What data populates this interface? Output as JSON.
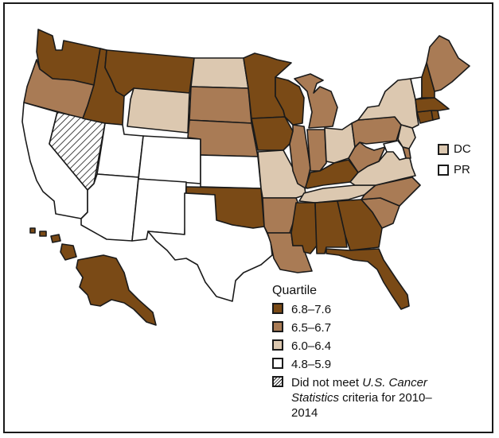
{
  "legend": {
    "title": "Quartile",
    "items": [
      {
        "label": "6.8–7.6",
        "color": "#7a4a16"
      },
      {
        "label": "6.5–6.7",
        "color": "#a97b55"
      },
      {
        "label": "6.0–6.4",
        "color": "#dcc8b0"
      },
      {
        "label": "4.8–5.9",
        "color": "#ffffff"
      }
    ],
    "nodata_prefix": "Did not meet ",
    "nodata_italic": "U.S. Cancer Statistics",
    "nodata_suffix": " criteria for 2010–2014"
  },
  "insets": {
    "dc": {
      "label": "DC",
      "quartile": "6.0–6.4"
    },
    "pr": {
      "label": "PR",
      "quartile": "4.8–5.9"
    }
  },
  "states": {
    "WA": "6.8–7.6",
    "OR": "6.5–6.7",
    "CA": "4.8–5.9",
    "NV": "no-data",
    "ID": "6.8–7.6",
    "MT": "6.8–7.6",
    "WY": "6.0–6.4",
    "UT": "4.8–5.9",
    "AZ": "4.8–5.9",
    "CO": "4.8–5.9",
    "NM": "4.8–5.9",
    "ND": "6.0–6.4",
    "SD": "6.5–6.7",
    "NE": "6.5–6.7",
    "KS": "4.8–5.9",
    "OK": "6.8–7.6",
    "TX": "4.8–5.9",
    "MN": "6.8–7.6",
    "IA": "6.8–7.6",
    "MO": "6.0–6.4",
    "AR": "6.5–6.7",
    "LA": "6.5–6.7",
    "WI": "6.8–7.6",
    "IL": "6.5–6.7",
    "MI": "6.5–6.7",
    "IN": "6.5–6.7",
    "OH": "6.0–6.4",
    "KY": "6.8–7.6",
    "TN": "6.0–6.4",
    "MS": "6.8–7.6",
    "AL": "6.8–7.6",
    "GA": "6.8–7.6",
    "FL": "6.8–7.6",
    "SC": "6.5–6.7",
    "NC": "6.5–6.7",
    "VA": "6.0–6.4",
    "WV": "6.5–6.7",
    "PA": "6.5–6.7",
    "NY": "6.0–6.4",
    "NJ": "6.0–6.4",
    "DE": "6.5–6.7",
    "MD": "4.8–5.9",
    "CT": "6.8–7.6",
    "RI": "6.8–7.6",
    "MA": "6.8–7.6",
    "VT": "4.8–5.9",
    "NH": "6.8–7.6",
    "ME": "6.5–6.7",
    "AK": "6.8–7.6",
    "HI": "6.8–7.6"
  }
}
